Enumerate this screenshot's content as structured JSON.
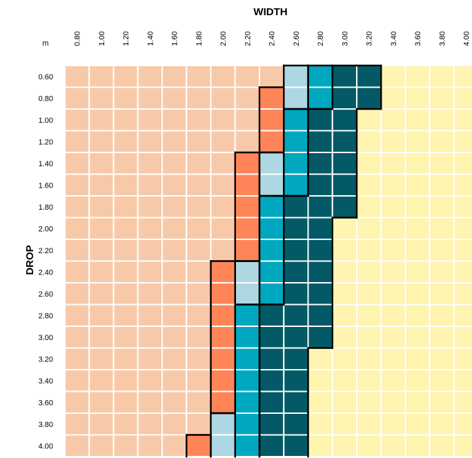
{
  "chart_data": {
    "type": "heatmap",
    "title": "WIDTH",
    "xlabel": "WIDTH",
    "ylabel": "DROP",
    "unit_label": "m",
    "x": [
      "0.80",
      "1.00",
      "1.20",
      "1.40",
      "1.60",
      "1.80",
      "2.00",
      "2.20",
      "2.40",
      "2.60",
      "2.80",
      "3.00",
      "3.20",
      "3.40",
      "3.60",
      "3.80",
      "4.00"
    ],
    "y": [
      "0.60",
      "0.80",
      "1.00",
      "1.20",
      "1.40",
      "1.60",
      "1.80",
      "2.00",
      "2.20",
      "2.40",
      "2.60",
      "2.80",
      "3.00",
      "3.20",
      "3.40",
      "3.60",
      "3.80",
      "4.00"
    ],
    "colors": {
      "P": "#F8C9A9",
      "O": "#FF8559",
      "L": "#ADD8E3",
      "C": "#00A8BF",
      "D": "#035A66",
      "Y": "#FFF4B0"
    },
    "cells": [
      "PPPPPPPPPLCDDYYYY",
      "PPPPPPPPOLCDDYYYY",
      "PPPPPPPPOCDDYYYYY",
      "PPPPPPPPOCDDYYYYY",
      "PPPPPPPOLCDDYYYYY",
      "PPPPPPPOLCDDYYYYY",
      "PPPPPPPOCDDDYYYYY",
      "PPPPPPPOCDDYYYYYY",
      "PPPPPPPOCDDYYYYYY",
      "PPPPPPOLCDDYYYYYY",
      "PPPPPPOLCDDYYYYYY",
      "PPPPPPOCDDDYYYYYY",
      "PPPPPPOCDDDYYYYYY",
      "PPPPPPOCDDYYYYYYY",
      "PPPPPPOCDDYYYYYYY",
      "PPPPPPOCDDYYYYYYY",
      "PPPPPPLCDDYYYYYYY",
      "PPPPPOLCDDYYYYYYY"
    ]
  }
}
